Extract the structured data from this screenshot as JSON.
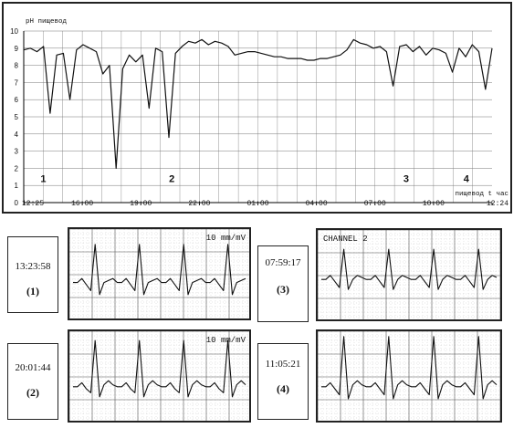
{
  "chart_data": [
    {
      "type": "line",
      "ylabel": "pH пищевод",
      "xlabel": "пищевод t час",
      "ylim": [
        0,
        10
      ],
      "y_ticks": [
        0,
        1,
        2,
        3,
        4,
        5,
        6,
        7,
        8,
        9,
        10
      ],
      "x_ticks": [
        "12:25",
        "16:00",
        "19:00",
        "22:00",
        "01:00",
        "04:00",
        "07:00",
        "10:00",
        "12:24"
      ],
      "markers": [
        {
          "label": "1",
          "time": "13:25"
        },
        {
          "label": "2",
          "time": "20:00"
        },
        {
          "label": "3",
          "time": "08:00"
        },
        {
          "label": "4",
          "time": "11:05"
        }
      ],
      "series": [
        {
          "values": [
            8.9,
            9.0,
            8.8,
            9.1,
            5.2,
            8.6,
            8.7,
            6.0,
            8.9,
            9.2,
            9.0,
            8.8,
            7.5,
            8.0,
            2.0,
            7.8,
            8.6,
            8.2,
            8.6,
            5.5,
            9.0,
            8.8,
            3.8,
            8.7,
            9.1,
            9.4,
            9.3,
            9.5,
            9.2,
            9.4,
            9.3,
            9.1,
            8.6,
            8.7,
            8.8,
            8.8,
            8.7,
            8.6,
            8.5,
            8.5,
            8.4,
            8.4,
            8.4,
            8.3,
            8.3,
            8.4,
            8.4,
            8.5,
            8.6,
            8.9,
            9.5,
            9.3,
            9.2,
            9.0,
            9.1,
            8.8,
            6.8,
            9.1,
            9.2,
            8.8,
            9.1,
            8.6,
            9.0,
            8.9,
            8.7,
            7.6,
            9.0,
            8.5,
            9.2,
            8.8,
            6.6,
            9.0
          ]
        }
      ]
    },
    {
      "type": "line",
      "title": "ECG 13:23:58",
      "annotation": "10 mm/mV",
      "series": [
        {
          "values": [
            0.1,
            0.1,
            0.3,
            0.0,
            -0.3,
            2.0,
            -0.5,
            0.1,
            0.2,
            0.3,
            0.1,
            0.1,
            0.3,
            0.0,
            -0.3,
            2.0,
            -0.5,
            0.1,
            0.2,
            0.3,
            0.1,
            0.1,
            0.3,
            0.0,
            -0.3,
            2.0,
            -0.5,
            0.1,
            0.2,
            0.3,
            0.1,
            0.1,
            0.3,
            0.0,
            -0.3,
            2.0,
            -0.5,
            0.1,
            0.2,
            0.3
          ]
        }
      ]
    },
    {
      "type": "line",
      "title": "ECG 07:59:17",
      "annotation": "CHANNEL 2",
      "series": [
        {
          "values": [
            0.3,
            0.3,
            0.5,
            0.2,
            -0.1,
            1.8,
            -0.2,
            0.3,
            0.5,
            0.4,
            0.3,
            0.3,
            0.5,
            0.2,
            -0.1,
            1.8,
            -0.2,
            0.3,
            0.5,
            0.4,
            0.3,
            0.3,
            0.5,
            0.2,
            -0.1,
            1.8,
            -0.2,
            0.3,
            0.5,
            0.4,
            0.3,
            0.3,
            0.5,
            0.2,
            -0.1,
            1.8,
            -0.2,
            0.3,
            0.5,
            0.4
          ]
        }
      ]
    },
    {
      "type": "line",
      "title": "ECG 20:01:44",
      "annotation": "10 mm/mV",
      "series": [
        {
          "values": [
            0.0,
            0.0,
            0.2,
            -0.1,
            -0.3,
            2.3,
            -0.5,
            0.1,
            0.3,
            0.1,
            0.0,
            0.0,
            0.2,
            -0.1,
            -0.3,
            2.3,
            -0.5,
            0.1,
            0.3,
            0.1,
            0.0,
            0.0,
            0.2,
            -0.1,
            -0.3,
            2.3,
            -0.5,
            0.1,
            0.3,
            0.1,
            0.0,
            0.0,
            0.2,
            -0.1,
            -0.3,
            2.3,
            -0.5,
            0.1,
            0.3,
            0.1
          ]
        }
      ]
    },
    {
      "type": "line",
      "title": "ECG 11:05:21",
      "series": [
        {
          "values": [
            0.0,
            0.0,
            0.2,
            -0.1,
            -0.4,
            2.5,
            -0.6,
            0.1,
            0.3,
            0.1,
            0.0,
            0.0,
            0.2,
            -0.1,
            -0.4,
            2.5,
            -0.6,
            0.1,
            0.3,
            0.1,
            0.0,
            0.0,
            0.2,
            -0.1,
            -0.4,
            2.5,
            -0.6,
            0.1,
            0.3,
            0.1,
            0.0,
            0.0,
            0.2,
            -0.1,
            -0.4,
            2.5,
            -0.6,
            0.1,
            0.3,
            0.1
          ]
        }
      ]
    }
  ],
  "labels": [
    {
      "time": "13:23:58",
      "num": "(1)"
    },
    {
      "time": "07:59:17",
      "num": "(3)"
    },
    {
      "time": "20:01:44",
      "num": "(2)"
    },
    {
      "time": "11:05:21",
      "num": "(4)"
    }
  ],
  "colors": {
    "trace": "#111111",
    "grid": "#777777",
    "frame": "#222222"
  }
}
